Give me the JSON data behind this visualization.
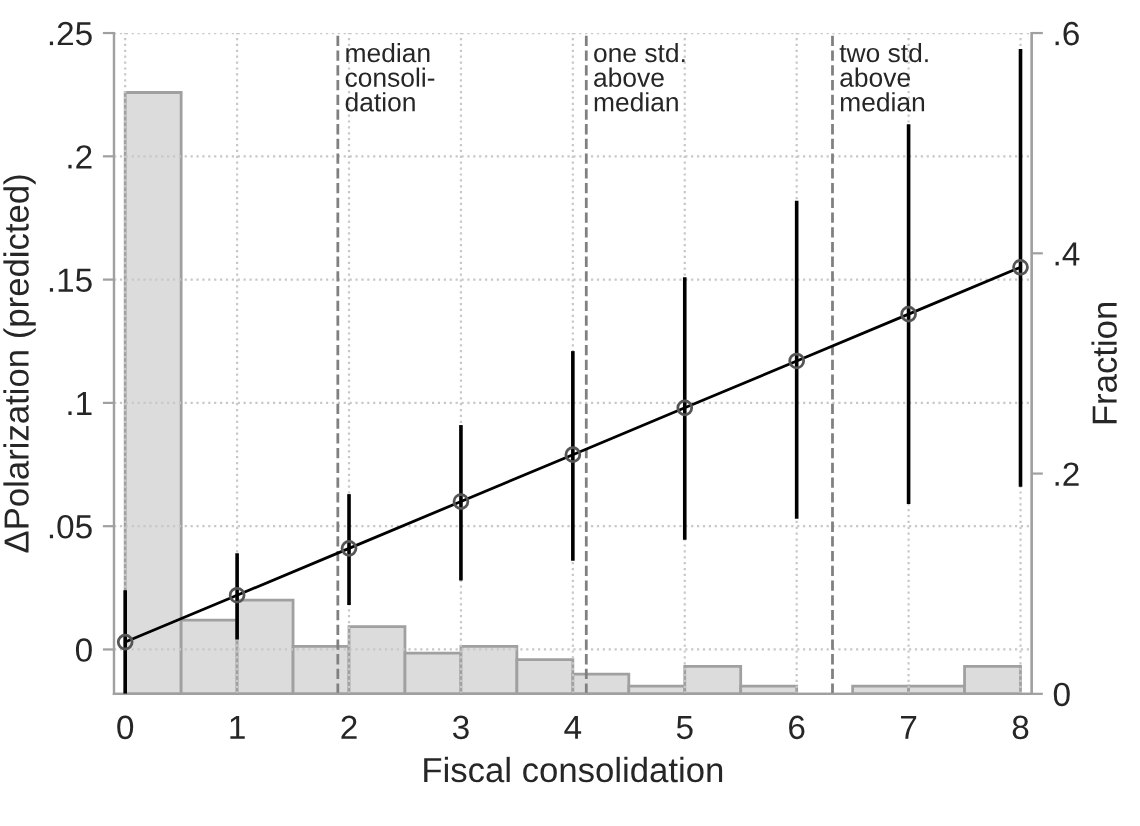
{
  "chart_data": {
    "type": "line",
    "xlabel": "Fiscal consolidation",
    "ylabel": "ΔPolarization (predicted)",
    "y2label": "Fraction",
    "xlim": [
      -0.1,
      8.1
    ],
    "xticks": [
      0,
      1,
      2,
      3,
      4,
      5,
      6,
      7,
      8
    ],
    "ylim": [
      -0.018,
      0.25
    ],
    "yticks": [
      {
        "value": 0,
        "label": "0"
      },
      {
        "value": 0.05,
        "label": ".05"
      },
      {
        "value": 0.1,
        "label": ".1"
      },
      {
        "value": 0.15,
        "label": ".15"
      },
      {
        "value": 0.2,
        "label": ".2"
      },
      {
        "value": 0.25,
        "label": ".25"
      }
    ],
    "y2lim": [
      0,
      0.6
    ],
    "y2ticks": [
      0,
      {
        "value": 0.2,
        "label": ".2"
      },
      {
        "value": 0.4,
        "label": ".4"
      },
      {
        "value": 0.6,
        "label": ".6"
      }
    ],
    "grid": true,
    "legend": false,
    "series": [
      {
        "type": "histogram",
        "axis": "y2",
        "color": "#dcdcdc",
        "bins": [
          0,
          0.5,
          1,
          1.5,
          2,
          2.5,
          3,
          3.5,
          4,
          4.5,
          5,
          5.5,
          6,
          6.5,
          7,
          7.5,
          8
        ],
        "values": [
          0.546,
          0.067,
          0.085,
          0.043,
          0.061,
          0.037,
          0.043,
          0.031,
          0.018,
          0.007,
          0.025,
          0.007,
          0,
          0.007,
          0.007,
          0.025
        ]
      },
      {
        "color": "#000000",
        "marker": "circle",
        "line_style": "solid",
        "x": [
          0,
          1,
          2,
          3,
          4,
          5,
          6,
          7,
          8
        ],
        "values": [
          0.003,
          0.022,
          0.041,
          0.06,
          0.079,
          0.098,
          0.117,
          0.136,
          0.155
        ],
        "errors": [
          [
            -0.018,
            0.024
          ],
          [
            0.004,
            0.039
          ],
          [
            0.018,
            0.063
          ],
          [
            0.028,
            0.091
          ],
          [
            0.036,
            0.121
          ],
          [
            0.0445,
            0.151
          ],
          [
            0.053,
            0.182
          ],
          [
            0.059,
            0.213
          ],
          [
            0.066,
            0.2435
          ]
        ]
      }
    ],
    "ref_lines": [
      {
        "axis": "x",
        "value": 1.9,
        "label": "median\nconsoli-\ndation",
        "color": "#808080",
        "line_style": "dashed"
      },
      {
        "axis": "x",
        "value": 4.12,
        "label": "one std.\nabove\nmedian",
        "color": "#808080",
        "line_style": "dashed"
      },
      {
        "axis": "x",
        "value": 6.32,
        "label": "two std.\nabove\nmedian",
        "color": "#808080",
        "line_style": "dashed"
      }
    ]
  }
}
